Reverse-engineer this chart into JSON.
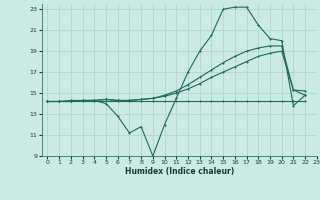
{
  "xlabel": "Humidex (Indice chaleur)",
  "bg_color": "#cceae4",
  "grid_color": "#aad4cc",
  "line_color": "#1a6b5a",
  "xlim": [
    -0.5,
    23
  ],
  "ylim": [
    9,
    23.5
  ],
  "yticks": [
    9,
    11,
    13,
    15,
    17,
    19,
    21,
    23
  ],
  "xticks": [
    0,
    1,
    2,
    3,
    4,
    5,
    6,
    7,
    8,
    9,
    10,
    11,
    12,
    13,
    14,
    15,
    16,
    17,
    18,
    19,
    20,
    21,
    22,
    23
  ],
  "line1_x": [
    0,
    1,
    2,
    3,
    4,
    5,
    6,
    7,
    8,
    9,
    10,
    11,
    12,
    13,
    14,
    15,
    16,
    17,
    18,
    19,
    20,
    21,
    22
  ],
  "line1_y": [
    14.2,
    14.2,
    14.3,
    14.3,
    14.3,
    14.0,
    12.8,
    11.2,
    11.8,
    9.0,
    12.0,
    14.5,
    17.0,
    19.0,
    20.5,
    23.0,
    23.2,
    23.2,
    21.5,
    20.2,
    20.0,
    13.8,
    14.8
  ],
  "line2_x": [
    0,
    1,
    2,
    3,
    4,
    5,
    6,
    7,
    8,
    9,
    10,
    11,
    12,
    13,
    14,
    15,
    16,
    17,
    18,
    19,
    20,
    21,
    22
  ],
  "line2_y": [
    14.2,
    14.2,
    14.2,
    14.2,
    14.2,
    14.2,
    14.2,
    14.2,
    14.2,
    14.2,
    14.2,
    14.2,
    14.2,
    14.2,
    14.2,
    14.2,
    14.2,
    14.2,
    14.2,
    14.2,
    14.2,
    14.2,
    14.2
  ],
  "line3_x": [
    0,
    1,
    2,
    3,
    4,
    5,
    6,
    7,
    8,
    9,
    10,
    11,
    12,
    13,
    14,
    15,
    16,
    17,
    18,
    19,
    20,
    21,
    22
  ],
  "line3_y": [
    14.2,
    14.2,
    14.2,
    14.3,
    14.3,
    14.4,
    14.3,
    14.3,
    14.4,
    14.5,
    14.7,
    15.0,
    15.4,
    15.9,
    16.5,
    17.0,
    17.5,
    18.0,
    18.5,
    18.8,
    19.0,
    15.3,
    15.2
  ],
  "line4_x": [
    0,
    1,
    2,
    3,
    4,
    5,
    6,
    7,
    8,
    9,
    10,
    11,
    12,
    13,
    14,
    15,
    16,
    17,
    18,
    19,
    20,
    21,
    22
  ],
  "line4_y": [
    14.2,
    14.2,
    14.2,
    14.3,
    14.3,
    14.4,
    14.3,
    14.3,
    14.4,
    14.5,
    14.8,
    15.2,
    15.8,
    16.5,
    17.2,
    17.9,
    18.5,
    19.0,
    19.3,
    19.5,
    19.5,
    15.3,
    14.8
  ]
}
